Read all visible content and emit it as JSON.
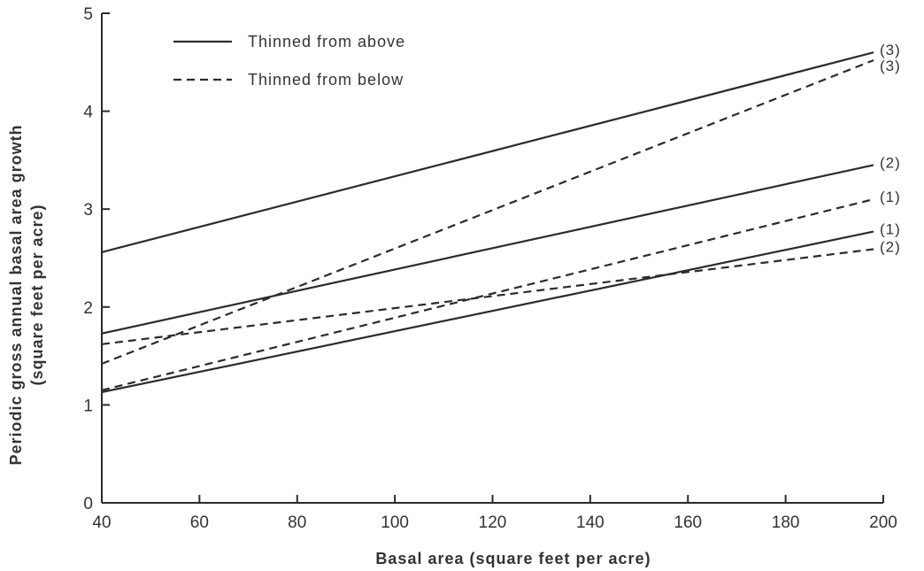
{
  "chart_data": {
    "type": "line",
    "xlabel": "Basal area (square feet per acre)",
    "ylabel_line1": "Periodic gross annual basal area growth",
    "ylabel_line2": "(square feet per acre)",
    "xlim": [
      40,
      200
    ],
    "ylim": [
      0,
      5
    ],
    "xticks": [
      40,
      60,
      80,
      100,
      120,
      140,
      160,
      180,
      200
    ],
    "yticks": [
      0,
      1,
      2,
      3,
      4,
      5
    ],
    "grid": false,
    "legend_placement": "top-left",
    "legend": [
      {
        "label": "Thinned from above",
        "style": "solid"
      },
      {
        "label": "Thinned from below",
        "style": "dashed"
      }
    ],
    "series": [
      {
        "style": "solid",
        "end_label": "(3)",
        "x": [
          40,
          198
        ],
        "y": [
          2.56,
          4.6
        ]
      },
      {
        "style": "solid",
        "end_label": "(2)",
        "x": [
          40,
          198
        ],
        "y": [
          1.73,
          3.45
        ]
      },
      {
        "style": "solid",
        "end_label": "(1)",
        "x": [
          40,
          198
        ],
        "y": [
          1.13,
          2.77
        ]
      },
      {
        "style": "dashed",
        "end_label": "(3)",
        "x": [
          40,
          198
        ],
        "y": [
          1.42,
          4.52
        ]
      },
      {
        "style": "dashed",
        "end_label": "(1)",
        "x": [
          40,
          198
        ],
        "y": [
          1.15,
          3.1
        ]
      },
      {
        "style": "dashed",
        "end_label": "(2)",
        "x": [
          40,
          198
        ],
        "y": [
          1.62,
          2.59
        ]
      }
    ]
  }
}
